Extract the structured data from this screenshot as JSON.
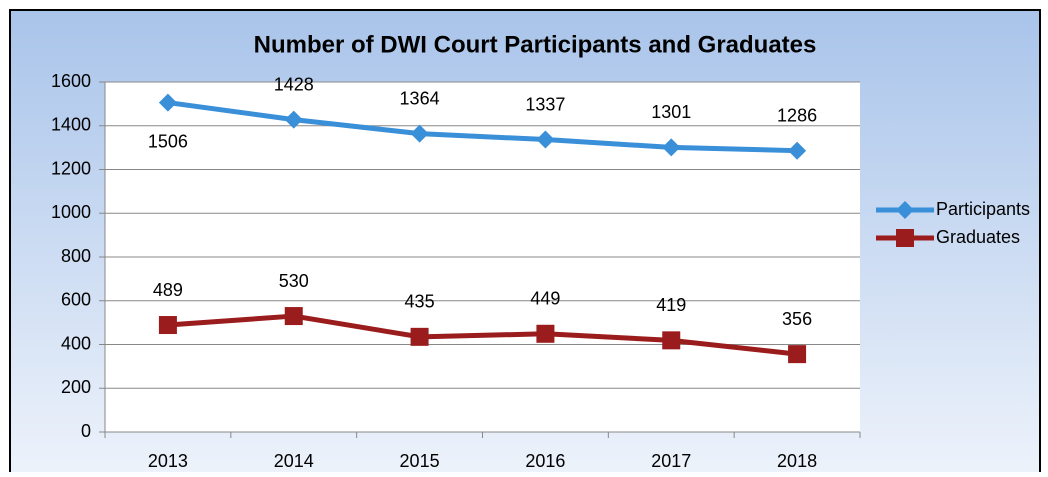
{
  "chart_data": {
    "type": "line",
    "title": "Number of DWI Court Participants and Graduates",
    "categories": [
      "2013",
      "2014",
      "2015",
      "2016",
      "2017",
      "2018"
    ],
    "series": [
      {
        "name": "Participants",
        "color": "#3a8fd9",
        "marker": "diamond",
        "values": [
          1506,
          1428,
          1364,
          1337,
          1301,
          1286
        ]
      },
      {
        "name": "Graduates",
        "color": "#9b1c1c",
        "marker": "square",
        "values": [
          489,
          530,
          435,
          449,
          419,
          356
        ]
      }
    ],
    "ylim": [
      0,
      1600
    ],
    "yticks": [
      0,
      200,
      400,
      600,
      800,
      1000,
      1200,
      1400,
      1600
    ],
    "grid": true,
    "legend": "right"
  }
}
